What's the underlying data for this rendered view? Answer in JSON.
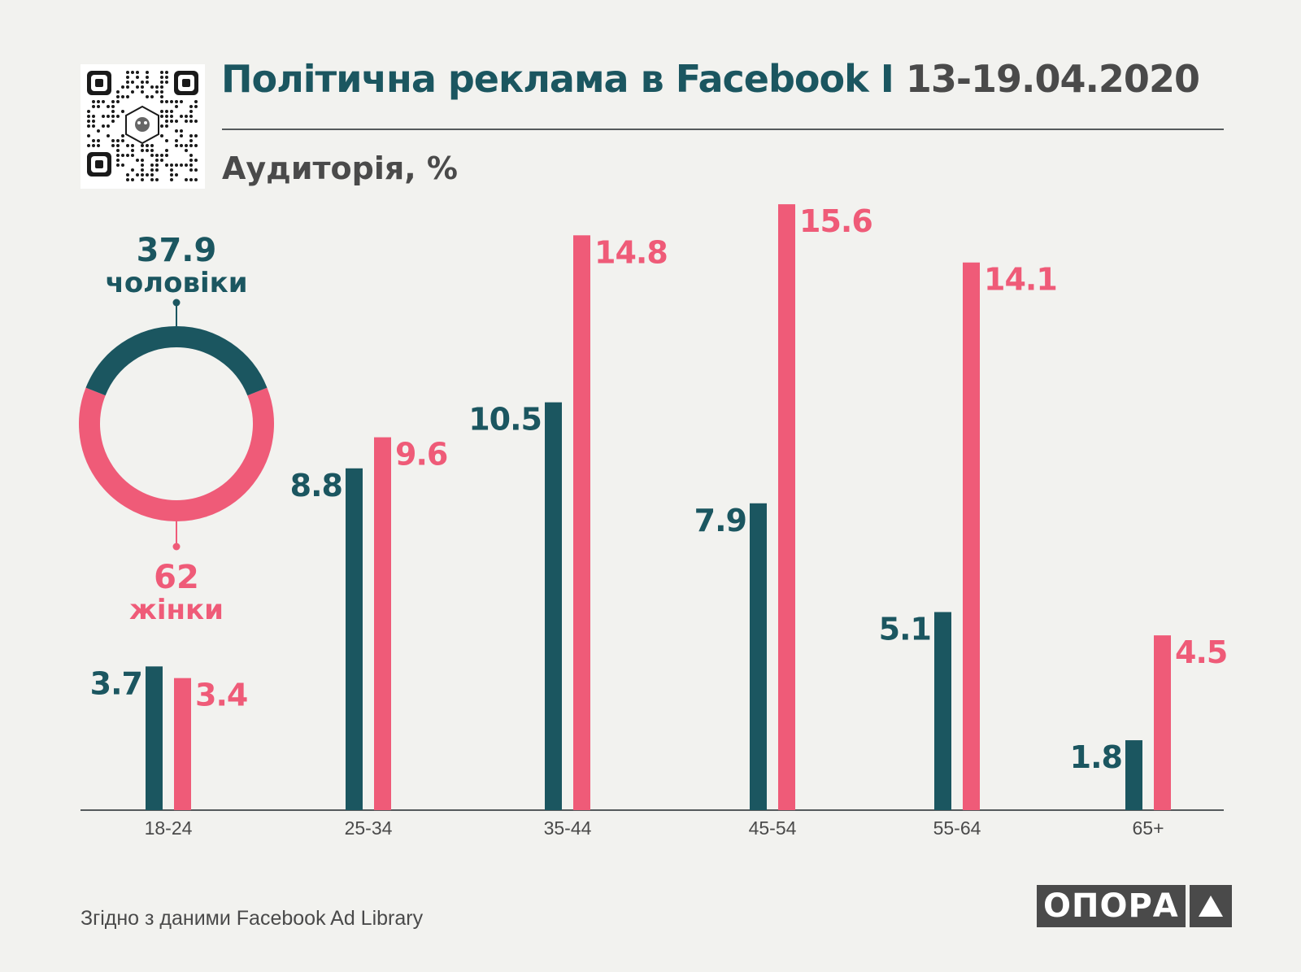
{
  "header": {
    "title_main": "Політична реклама в Facebook",
    "title_sep": " I ",
    "title_date": "13-19.04.2020",
    "subtitle": "Аудиторія, %"
  },
  "footer": {
    "source": "Згідно з даними  Facebook Ad Library",
    "logo_text": "ОПОРА"
  },
  "colors": {
    "men": "#1b5660",
    "women": "#ef5b78",
    "text_dark": "#4a4a4a",
    "background": "#f2f2ef"
  },
  "chart_data": [
    {
      "type": "bar",
      "categories": [
        "18-24",
        "25-34",
        "35-44",
        "45-54",
        "55-64",
        "65+"
      ],
      "series": [
        {
          "name": "чоловіки",
          "color": "#1b5660",
          "values": [
            3.7,
            8.8,
            10.5,
            7.9,
            5.1,
            1.8
          ]
        },
        {
          "name": "жінки",
          "color": "#ef5b78",
          "values": [
            3.4,
            9.6,
            14.8,
            15.6,
            14.1,
            4.5
          ]
        }
      ],
      "ylim": [
        0,
        16
      ],
      "grid": false,
      "data_labels": true
    },
    {
      "type": "pie",
      "labels": [
        "чоловіки",
        "жінки"
      ],
      "values": [
        37.9,
        62
      ],
      "value_labels": [
        "37.9",
        "62"
      ],
      "colors": [
        "#1b5660",
        "#ef5b78"
      ],
      "style": "donut"
    }
  ]
}
